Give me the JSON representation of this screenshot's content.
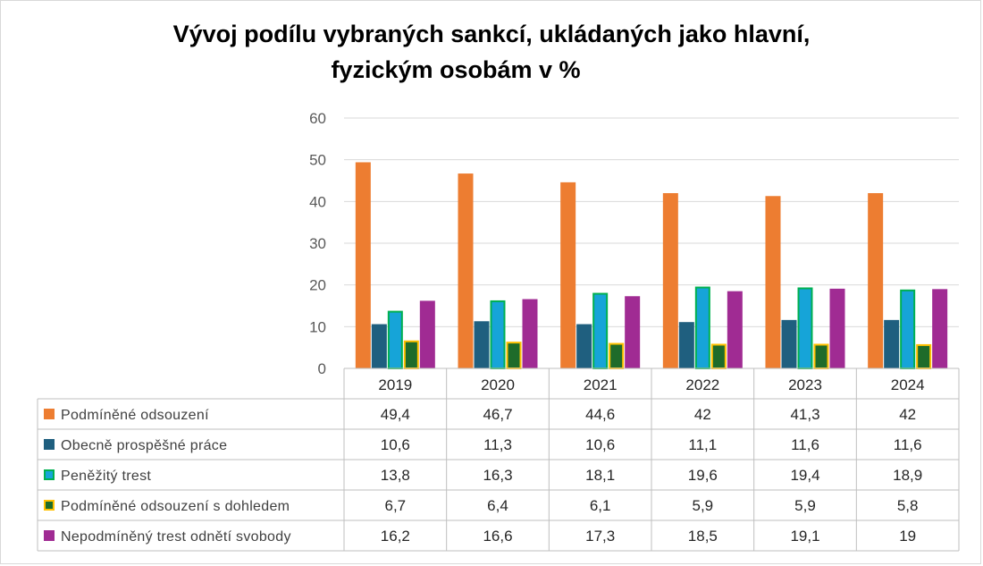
{
  "title_line1": "Vývoj podílu vybraných sankcí, ukládaných jako hlavní,",
  "title_line2": "fyzickým osobám v %",
  "chart_data": {
    "type": "bar",
    "title": "Vývoj podílu vybraných sankcí, ukládaných jako hlavní, fyzickým osobám v %",
    "categories": [
      "2019",
      "2020",
      "2021",
      "2022",
      "2023",
      "2024"
    ],
    "ylim": [
      0,
      60
    ],
    "yticks": [
      0,
      10,
      20,
      30,
      40,
      50,
      60
    ],
    "grid": true,
    "legend": "data-table",
    "series": [
      {
        "name": "Podmíněné odsouzení",
        "values": [
          49.4,
          46.7,
          44.6,
          42,
          41.3,
          42
        ],
        "labels": [
          "49,4",
          "46,7",
          "44,6",
          "42",
          "41,3",
          "42"
        ],
        "color": "#ED7D31"
      },
      {
        "name": "Obecně prospěšné práce",
        "values": [
          10.6,
          11.3,
          10.6,
          11.1,
          11.6,
          11.6
        ],
        "labels": [
          "10,6",
          "11,3",
          "10,6",
          "11,1",
          "11,6",
          "11,6"
        ],
        "color": "#1F5F7F"
      },
      {
        "name": "Peněžitý trest",
        "values": [
          13.8,
          16.3,
          18.1,
          19.6,
          19.4,
          18.9
        ],
        "labels": [
          "13,8",
          "16,3",
          "18,1",
          "19,6",
          "19,4",
          "18,9"
        ],
        "color": "#16A4D8",
        "border": "#00B050"
      },
      {
        "name": "Podmíněné odsouzení s dohledem",
        "values": [
          6.7,
          6.4,
          6.1,
          5.9,
          5.9,
          5.8
        ],
        "labels": [
          "6,7",
          "6,4",
          "6,1",
          "5,9",
          "5,9",
          "5,8"
        ],
        "color": "#1E6B2A",
        "border": "#FFC000"
      },
      {
        "name": "Nepodmíněný trest odnětí svobody",
        "values": [
          16.2,
          16.6,
          17.3,
          18.5,
          19.1,
          19
        ],
        "labels": [
          "16,2",
          "16,6",
          "17,3",
          "18,5",
          "19,1",
          "19"
        ],
        "color": "#A02B93"
      }
    ]
  }
}
